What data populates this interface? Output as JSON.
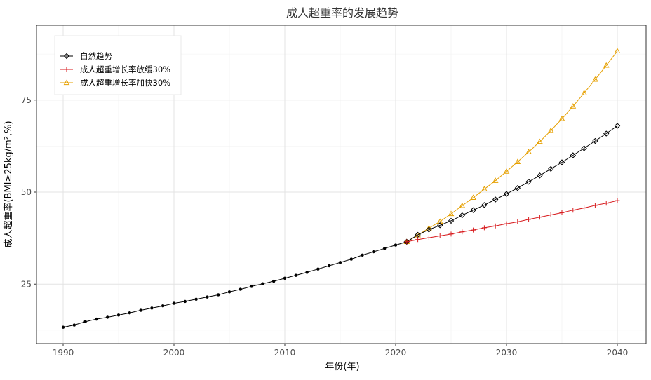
{
  "chart_data": {
    "type": "line",
    "title": "成人超重率的发展趋势",
    "xlabel": "年份(年)",
    "ylabel": "成人超重率(BMI≥25kg/m²,%)",
    "xlim": [
      1990,
      2040
    ],
    "ylim": [
      10,
      90
    ],
    "x_ticks": [
      "1990",
      "2000",
      "2010",
      "2020",
      "2030",
      "2040"
    ],
    "y_ticks": [
      "25",
      "50",
      "75"
    ],
    "grid": true,
    "legend_position": "top-left",
    "history": {
      "x": [
        1990,
        1991,
        1992,
        1993,
        1994,
        1995,
        1996,
        1997,
        1998,
        1999,
        2000,
        2001,
        2002,
        2003,
        2004,
        2005,
        2006,
        2007,
        2008,
        2009,
        2010,
        2011,
        2012,
        2013,
        2014,
        2015,
        2016,
        2017,
        2018,
        2019,
        2020,
        2021
      ],
      "values": [
        13.3,
        13.9,
        14.8,
        15.5,
        16.0,
        16.6,
        17.2,
        17.9,
        18.5,
        19.1,
        19.8,
        20.3,
        20.9,
        21.5,
        22.1,
        22.9,
        23.6,
        24.4,
        25.1,
        25.8,
        26.6,
        27.4,
        28.2,
        29.1,
        30.0,
        30.9,
        31.8,
        32.9,
        33.8,
        34.7,
        35.6,
        36.5
      ]
    },
    "series": [
      {
        "name": "自然趋势",
        "color": "#000000",
        "marker": "diamond",
        "x": [
          2021,
          2022,
          2023,
          2024,
          2025,
          2026,
          2027,
          2028,
          2029,
          2030,
          2031,
          2032,
          2033,
          2034,
          2035,
          2036,
          2037,
          2038,
          2039,
          2040
        ],
        "values": [
          36.5,
          38.4,
          39.8,
          41.0,
          42.2,
          43.7,
          45.1,
          46.5,
          48.0,
          49.5,
          51.1,
          52.8,
          54.5,
          56.3,
          58.1,
          60.0,
          61.9,
          63.9,
          65.9,
          68.0
        ]
      },
      {
        "name": "成人超重增长率放缓30%",
        "color": "#d7191c",
        "marker": "plus",
        "x": [
          2021,
          2022,
          2023,
          2024,
          2025,
          2026,
          2027,
          2028,
          2029,
          2030,
          2031,
          2032,
          2033,
          2034,
          2035,
          2036,
          2037,
          2038,
          2039,
          2040
        ],
        "values": [
          36.5,
          37.1,
          37.6,
          38.1,
          38.6,
          39.2,
          39.7,
          40.3,
          40.8,
          41.4,
          41.9,
          42.6,
          43.2,
          43.8,
          44.4,
          45.1,
          45.7,
          46.4,
          47.0,
          47.7
        ]
      },
      {
        "name": "成人超重增长率加快30%",
        "color": "#e6a000",
        "marker": "triangle",
        "x": [
          2021,
          2022,
          2023,
          2024,
          2025,
          2026,
          2027,
          2028,
          2029,
          2030,
          2031,
          2032,
          2033,
          2034,
          2035,
          2036,
          2037,
          2038,
          2039,
          2040
        ],
        "values": [
          36.5,
          38.3,
          40.2,
          42.0,
          44.1,
          46.3,
          48.5,
          50.8,
          53.1,
          55.6,
          58.2,
          60.9,
          63.7,
          66.7,
          69.9,
          73.3,
          76.9,
          80.6,
          84.4,
          88.3
        ]
      }
    ]
  }
}
